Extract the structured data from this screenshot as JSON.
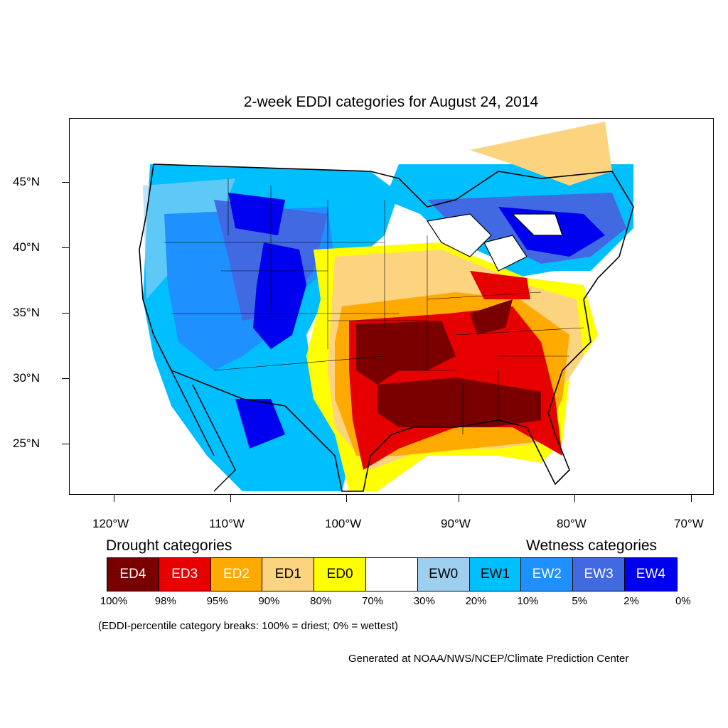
{
  "title": "2-week EDDI categories for August 24, 2014",
  "axes": {
    "lat_labels": [
      "45°N",
      "40°N",
      "35°N",
      "30°N",
      "25°N"
    ],
    "lon_labels": [
      "120°W",
      "110°W",
      "100°W",
      "90°W",
      "80°W",
      "70°W"
    ]
  },
  "legend": {
    "drought_title": "Drought categories",
    "wetness_title": "Wetness categories",
    "categories": [
      {
        "label": "ED4",
        "color": "#7a0000",
        "text_color": "#ffffff"
      },
      {
        "label": "ED3",
        "color": "#e60000",
        "text_color": "#ffffff"
      },
      {
        "label": "ED2",
        "color": "#ffaa00",
        "text_color": "#ffffff"
      },
      {
        "label": "ED1",
        "color": "#fcd37f",
        "text_color": "#000000"
      },
      {
        "label": "ED0",
        "color": "#ffff00",
        "text_color": "#000000"
      },
      {
        "label": "",
        "color": "#ffffff",
        "text_color": "#000000"
      },
      {
        "label": "EW0",
        "color": "#9dcff0",
        "text_color": "#000000"
      },
      {
        "label": "EW1",
        "color": "#00bfff",
        "text_color": "#000000"
      },
      {
        "label": "EW2",
        "color": "#1e90ff",
        "text_color": "#ffffff"
      },
      {
        "label": "EW3",
        "color": "#4169e1",
        "text_color": "#ffffff"
      },
      {
        "label": "EW4",
        "color": "#0000f0",
        "text_color": "#ffffff"
      }
    ],
    "percentiles": [
      "100%",
      "98%",
      "95%",
      "90%",
      "80%",
      "70%",
      "30%",
      "20%",
      "10%",
      "5%",
      "2%",
      "0%"
    ]
  },
  "note": "(EDDI-percentile category breaks: 100% = driest; 0% = wettest)",
  "credit": "Generated at NOAA/NWS/NCEP/Climate Prediction Center"
}
